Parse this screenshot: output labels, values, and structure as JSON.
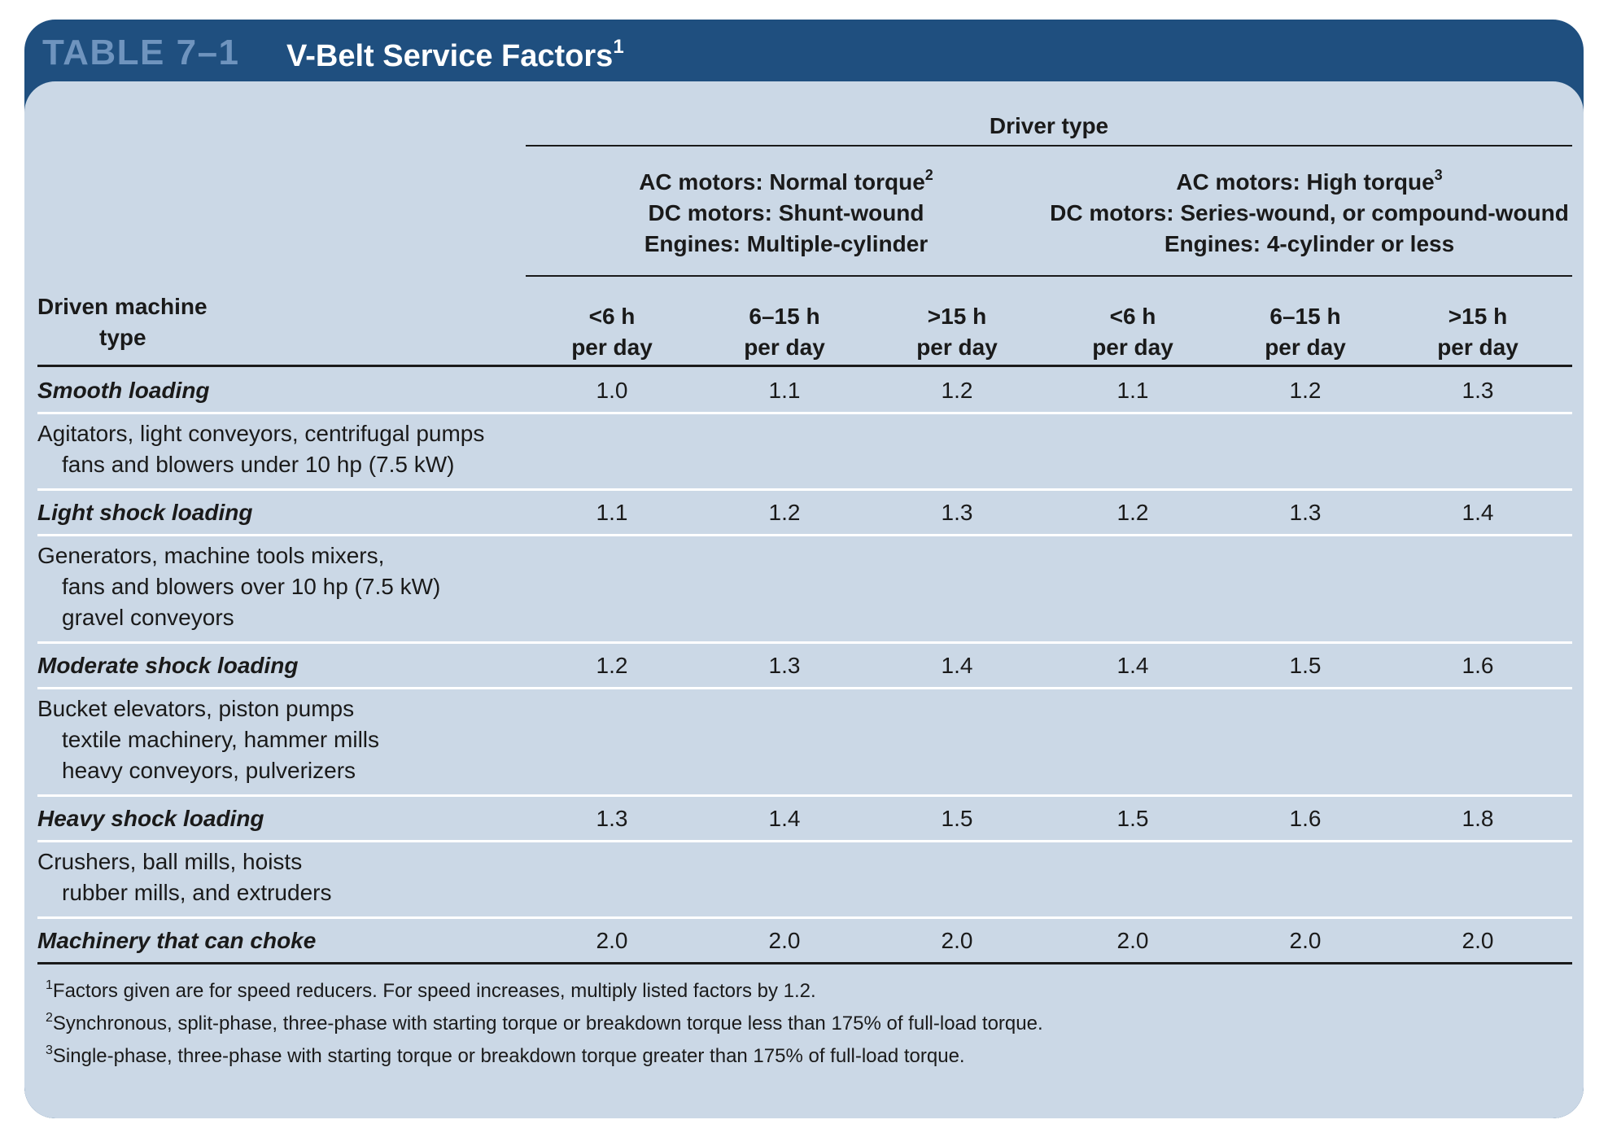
{
  "table_label": "TABLE 7–1",
  "table_title": "V-Belt Service Factors",
  "table_title_sup": "1",
  "driver_type": "Driver type",
  "group1": {
    "line1": "AC motors: Normal torque",
    "line1_sup": "2",
    "line2": "DC motors: Shunt-wound",
    "line3": "Engines: Multiple-cylinder"
  },
  "group2": {
    "line1": "AC motors: High torque",
    "line1_sup": "3",
    "line2": "DC motors: Series-wound, or compound-wound",
    "line3": "Engines: 4-cylinder or less"
  },
  "driven_header": {
    "line1": "Driven machine",
    "line2": "type"
  },
  "columns": [
    {
      "hours": "<6 h",
      "per": "per day"
    },
    {
      "hours": "6–15 h",
      "per": "per day"
    },
    {
      "hours": ">15 h",
      "per": "per day"
    },
    {
      "hours": "<6 h",
      "per": "per day"
    },
    {
      "hours": "6–15 h",
      "per": "per day"
    },
    {
      "hours": ">15 h",
      "per": "per day"
    }
  ],
  "rows": [
    {
      "label": "Smooth loading",
      "values": [
        "1.0",
        "1.1",
        "1.2",
        "1.1",
        "1.2",
        "1.3"
      ],
      "desc": [
        "Agitators, light conveyors, centrifugal pumps",
        "fans and blowers under 10 hp (7.5 kW)"
      ]
    },
    {
      "label": "Light shock loading",
      "values": [
        "1.1",
        "1.2",
        "1.3",
        "1.2",
        "1.3",
        "1.4"
      ],
      "desc": [
        "Generators, machine tools mixers,",
        "fans and blowers over 10 hp (7.5 kW)",
        "gravel conveyors"
      ]
    },
    {
      "label": "Moderate shock loading",
      "values": [
        "1.2",
        "1.3",
        "1.4",
        "1.4",
        "1.5",
        "1.6"
      ],
      "desc": [
        "Bucket elevators, piston pumps",
        "textile machinery, hammer mills",
        "heavy conveyors, pulverizers"
      ]
    },
    {
      "label": "Heavy shock loading",
      "values": [
        "1.3",
        "1.4",
        "1.5",
        "1.5",
        "1.6",
        "1.8"
      ],
      "desc": [
        "Crushers, ball mills, hoists",
        "rubber mills, and extruders"
      ]
    },
    {
      "label": "Machinery that can choke",
      "values": [
        "2.0",
        "2.0",
        "2.0",
        "2.0",
        "2.0",
        "2.0"
      ],
      "desc": []
    }
  ],
  "footnotes": [
    {
      "mark": "1",
      "text": "Factors given are for speed reducers. For speed increases, multiply listed factors by 1.2."
    },
    {
      "mark": "2",
      "text": "Synchronous, split-phase, three-phase with starting torque or breakdown torque less than 175% of full-load torque."
    },
    {
      "mark": "3",
      "text": "Single-phase, three-phase with starting torque or breakdown torque greater than 175% of full-load torque."
    }
  ]
}
